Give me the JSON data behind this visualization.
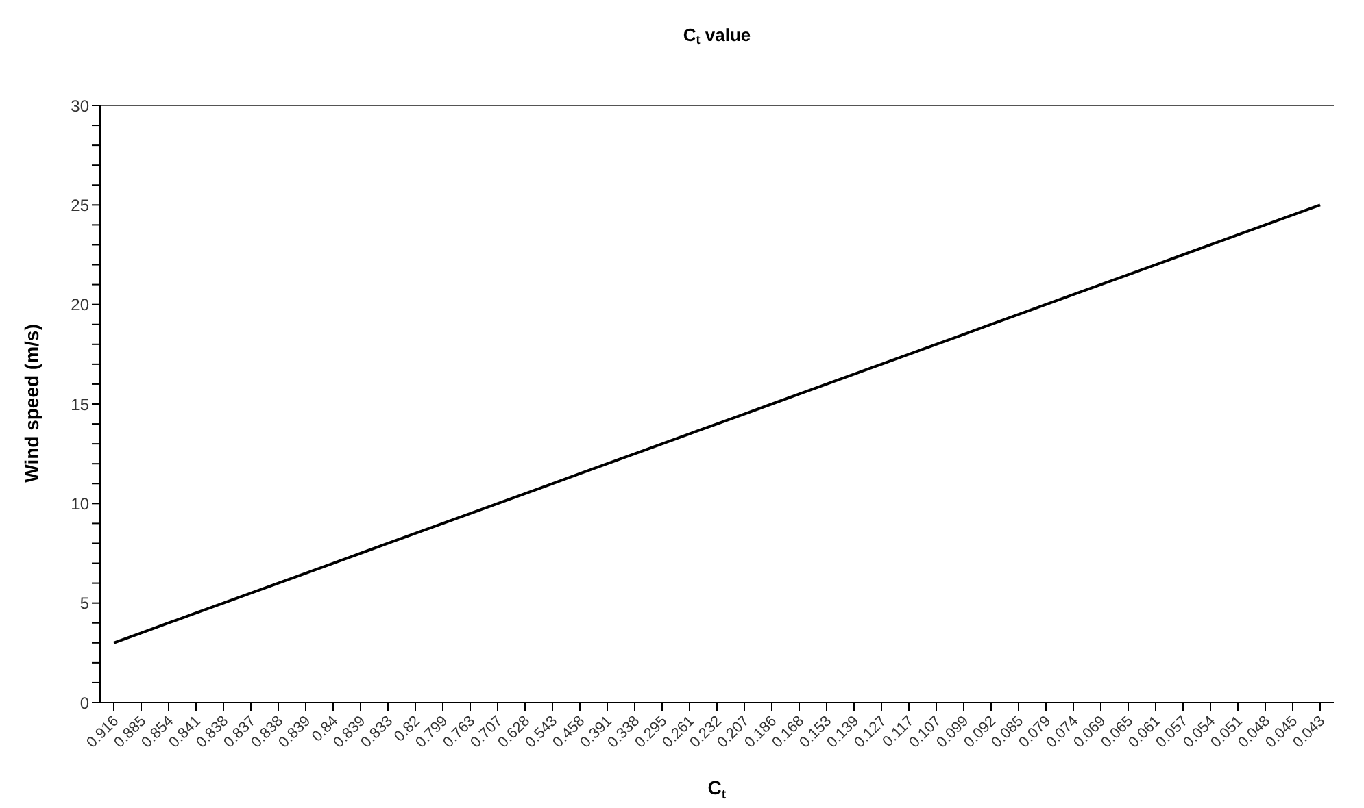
{
  "chart_data": {
    "type": "line",
    "title": "C$_{t}$ value",
    "xlabel": "C$_{t}$",
    "ylabel": "Wind speed (m/s)",
    "categories": [
      "0.916",
      "0.885",
      "0.854",
      "0.841",
      "0.838",
      "0.837",
      "0.838",
      "0.839",
      "0.84",
      "0.839",
      "0.833",
      "0.82",
      "0.799",
      "0.763",
      "0.707",
      "0.628",
      "0.543",
      "0.458",
      "0.391",
      "0.338",
      "0.295",
      "0.261",
      "0.232",
      "0.207",
      "0.186",
      "0.168",
      "0.153",
      "0.139",
      "0.127",
      "0.117",
      "0.107",
      "0.099",
      "0.092",
      "0.085",
      "0.079",
      "0.074",
      "0.069",
      "0.065",
      "0.061",
      "0.057",
      "0.054",
      "0.051",
      "0.048",
      "0.045",
      "0.043"
    ],
    "series": [
      {
        "color": "#000000",
        "values": [
          3,
          3.5,
          4,
          4.5,
          5,
          5.5,
          6,
          6.5,
          7,
          7.5,
          8,
          8.5,
          9,
          9.5,
          10,
          10.5,
          11,
          11.5,
          12,
          12.5,
          13,
          13.5,
          14,
          14.5,
          15,
          15.5,
          16,
          16.5,
          17,
          17.5,
          18,
          18.5,
          19,
          19.5,
          20,
          20.5,
          21,
          21.5,
          22,
          22.5,
          23,
          23.5,
          24,
          24.5,
          25
        ]
      }
    ],
    "ylim": [
      0,
      30
    ],
    "yticks": [
      0,
      {
        "value": 1,
        "label": null
      },
      {
        "value": 2,
        "label": null
      },
      {
        "value": 3,
        "label": null
      },
      {
        "value": 4,
        "label": null
      },
      5,
      {
        "value": 6,
        "label": null
      },
      {
        "value": 7,
        "label": null
      },
      {
        "value": 8,
        "label": null
      },
      {
        "value": 9,
        "label": null
      },
      10,
      {
        "value": 11,
        "label": null
      },
      {
        "value": 12,
        "label": null
      },
      {
        "value": 13,
        "label": null
      },
      {
        "value": 14,
        "label": null
      },
      15,
      {
        "value": 16,
        "label": null
      },
      {
        "value": 17,
        "label": null
      },
      {
        "value": 18,
        "label": null
      },
      {
        "value": 19,
        "label": null
      },
      20,
      {
        "value": 21,
        "label": null
      },
      {
        "value": 22,
        "label": null
      },
      {
        "value": 23,
        "label": null
      },
      {
        "value": 24,
        "label": null
      },
      25,
      {
        "value": 26,
        "label": null
      },
      {
        "value": 27,
        "label": null
      },
      {
        "value": 28,
        "label": null
      },
      {
        "value": 29,
        "label": null
      },
      30
    ],
    "grid": false,
    "legend": false,
    "marker": "none",
    "line_style": "solid"
  }
}
